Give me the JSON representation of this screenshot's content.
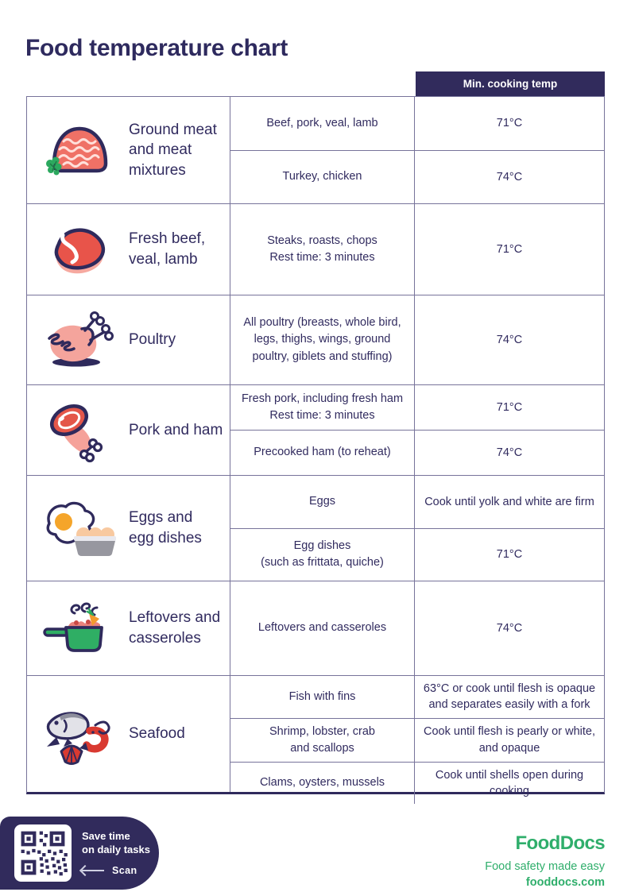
{
  "page": {
    "title": "Food temperature chart"
  },
  "colors": {
    "navy": "#312b5c",
    "border": "#77739a",
    "brand_green": "#2fae6b",
    "meat_coral": "#ef7166",
    "steak_red": "#e8544a",
    "pink": "#f4a49c",
    "yolk_orange": "#f5a52a",
    "pot_green": "#2fae64",
    "seafood_red": "#d93a31"
  },
  "table": {
    "header": {
      "min_temp_label": "Min. cooking temp"
    },
    "groups": [
      {
        "icon": "ground-meat",
        "label": "Ground meat and meat mixtures",
        "rows": [
          {
            "food": "Beef, pork, veal, lamb",
            "temp": "71°C"
          },
          {
            "food": "Turkey, chicken",
            "temp": "74°C"
          }
        ]
      },
      {
        "icon": "steak",
        "label": "Fresh beef, veal, lamb",
        "rows": [
          {
            "food": "Steaks, roasts, chops\nRest time: 3 minutes",
            "temp": "71°C"
          }
        ]
      },
      {
        "icon": "poultry",
        "label": "Poultry",
        "rows": [
          {
            "food": "All poultry (breasts, whole bird,\nlegs, thighs, wings, ground\npoultry, giblets and stuffing)",
            "temp": "74°C"
          }
        ]
      },
      {
        "icon": "ham",
        "label": "Pork and ham",
        "rows": [
          {
            "food": "Fresh pork, including fresh ham\nRest time: 3 minutes",
            "temp": "71°C"
          },
          {
            "food": "Precooked ham (to reheat)",
            "temp": "74°C"
          }
        ]
      },
      {
        "icon": "eggs",
        "label": "Eggs and\negg dishes",
        "rows": [
          {
            "food": "Eggs",
            "temp": "Cook until yolk and white are firm"
          },
          {
            "food": "Egg dishes\n(such as frittata, quiche)",
            "temp": "71°C"
          }
        ]
      },
      {
        "icon": "pot",
        "label": "Leftovers and casseroles",
        "rows": [
          {
            "food": "Leftovers and casseroles",
            "temp": "74°C"
          }
        ]
      },
      {
        "icon": "seafood",
        "label": "Seafood",
        "rows": [
          {
            "food": "Fish with fins",
            "temp": "63°C or cook until flesh is opaque\nand separates easily with a fork"
          },
          {
            "food": "Shrimp, lobster, crab\nand scallops",
            "temp": "Cook until flesh is pearly or white,\nand opaque"
          },
          {
            "food": "Clams, oysters, mussels",
            "temp": "Cook until shells open during\ncooking"
          }
        ]
      }
    ]
  },
  "footer": {
    "qr": {
      "line1": "Save time",
      "line2": "on daily tasks",
      "scan_label": "Scan"
    },
    "brand": {
      "logo": "FoodDocs",
      "tagline": "Food safety made easy",
      "website": "fooddocs.com"
    }
  }
}
